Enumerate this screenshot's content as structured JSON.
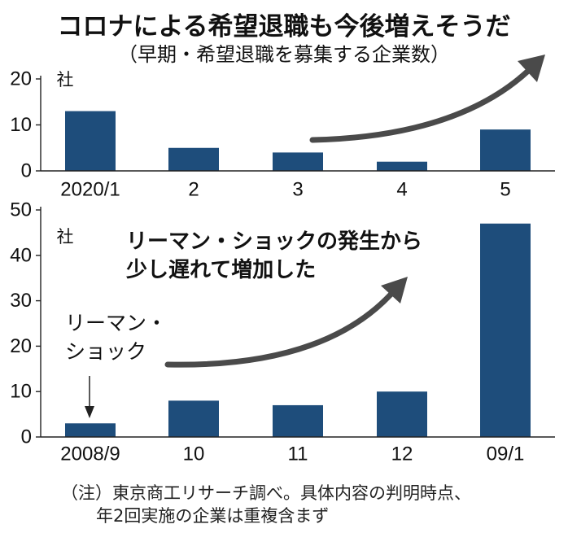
{
  "title": "コロナによる希望退職も今後増えそうだ",
  "subtitle": "（早期・希望退職を募集する企業数）",
  "footnote": [
    "（注）東京商工リサーチ調べ。具体内容の判明時点、",
    "年2回実施の企業は重複含まず"
  ],
  "chart_data": [
    {
      "type": "bar",
      "unit_label": "社",
      "categories": [
        "2020/1",
        "2",
        "3",
        "4",
        "5"
      ],
      "values": [
        13,
        5,
        4,
        2,
        9
      ],
      "ylim": [
        0,
        20
      ],
      "yticks": [
        0,
        10,
        20
      ]
    },
    {
      "type": "bar",
      "unit_label": "社",
      "categories": [
        "2008/9",
        "10",
        "11",
        "12",
        "09/1"
      ],
      "values": [
        3,
        8,
        7,
        10,
        47
      ],
      "ylim": [
        0,
        50
      ],
      "yticks": [
        0,
        10,
        20,
        30,
        40,
        50
      ],
      "annotation": [
        "リーマン・ショックの発生から",
        "少し遅れて増加した"
      ],
      "event_label": [
        "リーマン・",
        "ショック"
      ]
    }
  ],
  "colors": {
    "bar": "#1e4d7b",
    "arrow": "#4a4a4a",
    "text": "#111111"
  }
}
